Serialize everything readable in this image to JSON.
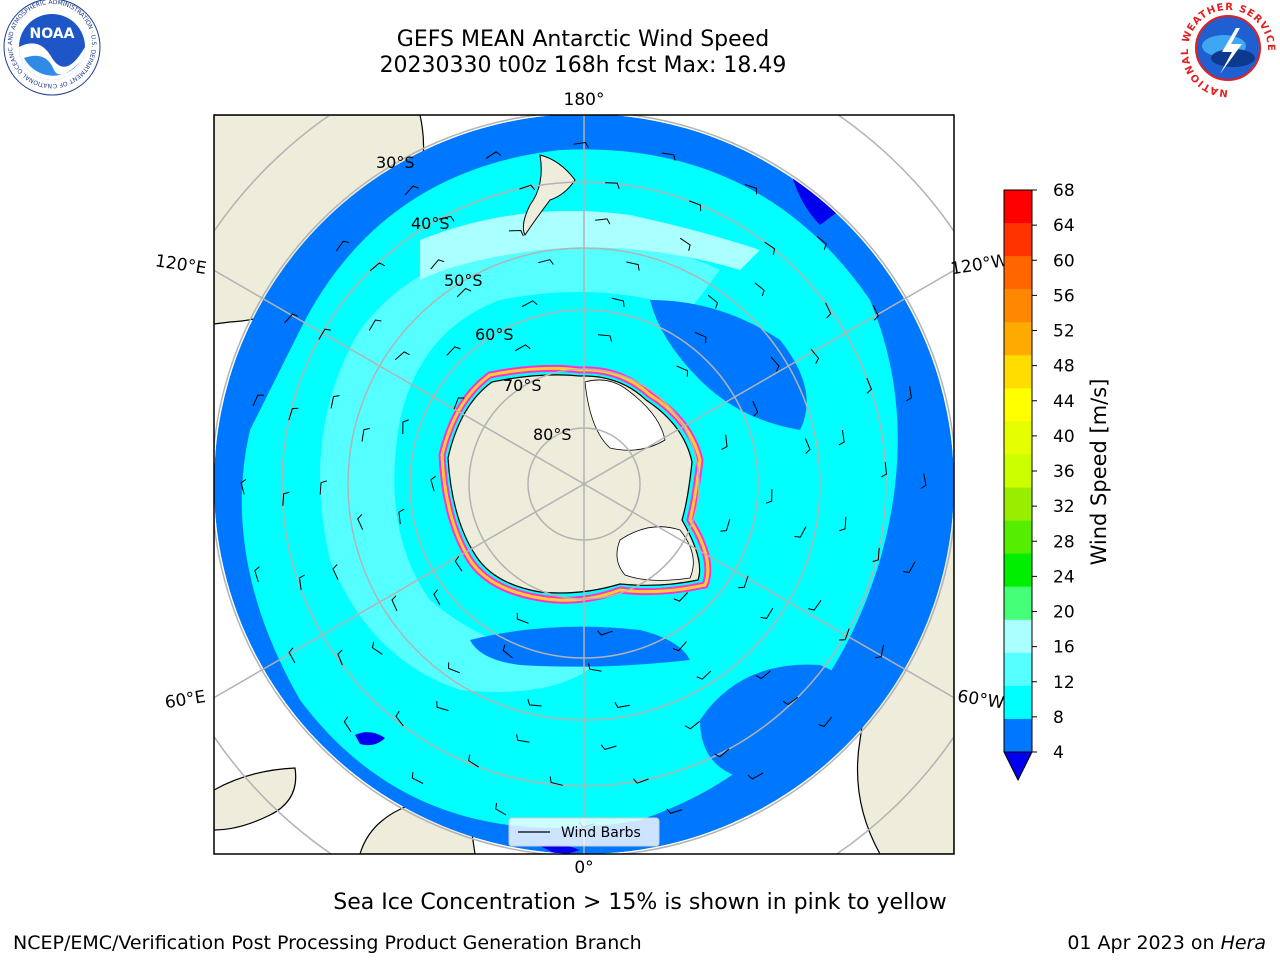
{
  "header": {
    "title_line1": "GEFS MEAN Antarctic Wind Speed",
    "title_line2": "20230330 t00z 168h fcst   Max: 18.49"
  },
  "map": {
    "longitude_labels": [
      "180°",
      "120°E",
      "120°W",
      "60°E",
      "60°W",
      "0°"
    ],
    "latitude_labels": [
      "30°S",
      "40°S",
      "50°S",
      "60°S",
      "70°S",
      "80°S"
    ],
    "legend_label": "Wind Barbs"
  },
  "colorbar": {
    "label": "Wind Speed [m/s]",
    "ticks": [
      "68",
      "64",
      "60",
      "56",
      "52",
      "48",
      "44",
      "40",
      "36",
      "32",
      "28",
      "24",
      "20",
      "16",
      "12",
      "8",
      "4"
    ],
    "colors_top_to_bottom": [
      "#ff0000",
      "#ff3300",
      "#ff6600",
      "#ff8800",
      "#ffaa00",
      "#ffdd00",
      "#ffff00",
      "#e6ff00",
      "#ccff00",
      "#99ee00",
      "#55ee00",
      "#00ee00",
      "#44ff77",
      "#aaffff",
      "#55ffff",
      "#00ffff",
      "#0077ff"
    ],
    "extend_color": "#0000ee"
  },
  "chart_data": {
    "type": "heatmap",
    "projection": "south polar stereographic",
    "variable": "GEFS mean wind speed",
    "units": "m/s",
    "max_value": 18.49,
    "color_levels": [
      4,
      8,
      12,
      16,
      20,
      24,
      28,
      32,
      36,
      40,
      44,
      48,
      52,
      56,
      60,
      64,
      68
    ],
    "overlay": "Wind Barbs",
    "sea_ice_note": "Sea Ice Concentration > 15% is shown in pink to yellow"
  },
  "caption": "Sea Ice Concentration > 15% is shown in pink to yellow",
  "footer": {
    "left": "NCEP/EMC/Verification Post Processing Product Generation Branch",
    "right_date": "01 Apr 2023 on ",
    "right_host": "Hera"
  },
  "logos": {
    "noaa": "NOAA",
    "noaa_ring": "NATIONAL OCEANIC AND ATMOSPHERIC ADMINISTRATION · U.S. DEPARTMENT OF COMMERCE",
    "nws_ring": "NATIONAL WEATHER SERVICE"
  },
  "colors": {
    "land": "#eeecdb",
    "ocean_low": "#0077ff",
    "ocean_mid": "#00ffff",
    "ocean_high": "#55ffff",
    "ice_edge": "#ff33cc",
    "grid": "#b3b3b3"
  }
}
